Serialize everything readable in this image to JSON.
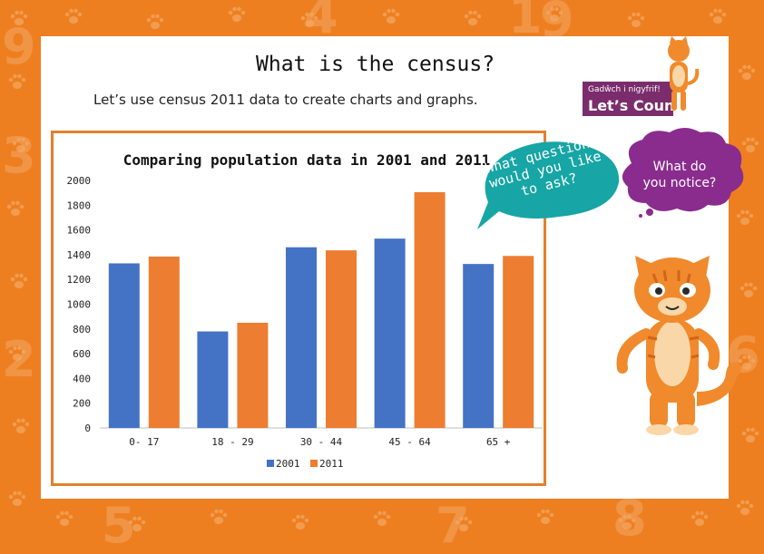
{
  "page": {
    "title": "What is the census?",
    "subtitle": "Let’s use census 2011 data to create charts and graphs."
  },
  "logo": {
    "line1": "Gadŵch i nigyfrif!",
    "line2": "Let’s Count!"
  },
  "prompt_bubble": {
    "text": "What questions would you like to ask?",
    "lines": [
      "What questions",
      "would you like",
      "to ask?"
    ],
    "color": "#17a5a5"
  },
  "thought_bubble": {
    "line1": "What do",
    "line2": "you notice?",
    "color": "#8a2c8e"
  },
  "colors": {
    "frame": "#ee7f20",
    "series_2001": "#4472c4",
    "series_2011": "#ed7d31",
    "chart_border": "#e2812b"
  },
  "icons": [
    "paw-print-icon",
    "cat-mascot",
    "logo-badge"
  ],
  "background_numbers": [
    "9",
    "4",
    "3",
    "2",
    "5",
    "7",
    "1",
    "8",
    "9",
    "6"
  ],
  "chart_data": {
    "type": "bar",
    "title": "Comparing population data in 2001 and 2011",
    "xlabel": "",
    "ylabel": "",
    "categories": [
      "0- 17",
      "18 - 29",
      "30 - 44",
      "45 - 64",
      "65 +"
    ],
    "series": [
      {
        "name": "2001",
        "values": [
          1330,
          780,
          1460,
          1530,
          1325
        ],
        "color": "#4472c4"
      },
      {
        "name": "2011",
        "values": [
          1385,
          850,
          1435,
          1905,
          1390
        ],
        "color": "#ed7d31"
      }
    ],
    "ylim": [
      0,
      2000
    ],
    "yticks": [
      0,
      200,
      400,
      600,
      800,
      1000,
      1200,
      1400,
      1600,
      1800,
      2000
    ],
    "grid": false,
    "legend": "bottom"
  }
}
